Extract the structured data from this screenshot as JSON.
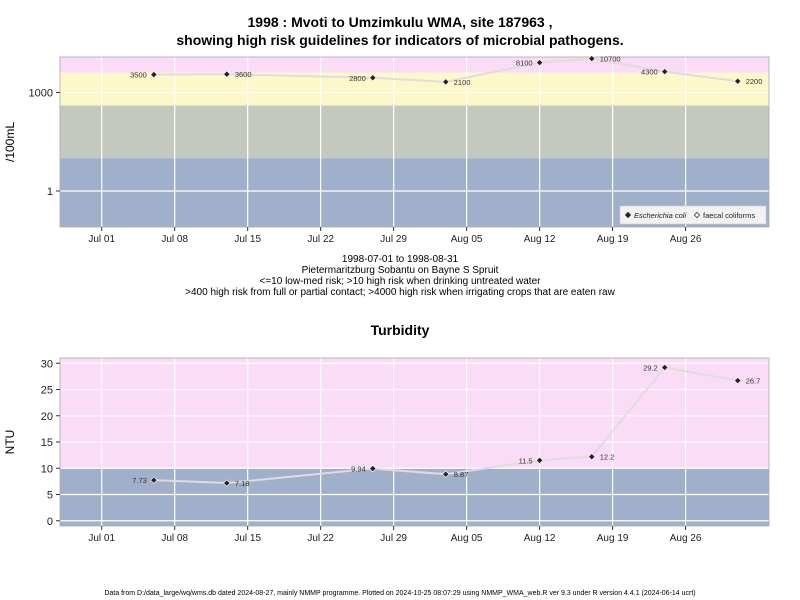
{
  "page": {
    "title_line1": "1998 : Mvoti to Umzimkulu WMA, site 187963 ,",
    "title_line2": "showing high risk guidelines for indicators of microbial pathogens.",
    "sub_lines": [
      "1998-07-01 to 1998-08-31",
      "Pietermaritzburg Sobantu on Bayne S Spruit",
      "<=10 low-med risk; >10 high risk when drinking untreated water",
      ">400 high risk from full or partial contact; >4000 high risk when irrigating crops that are eaten raw"
    ],
    "footer": "Data from D:/data_large/wq/wms.db dated 2024-08-27, mainly NMMP programme. Plotted on 2024-10-25 08:07:29 using NMMP_WMA_web.R ver 9.3 under R version 4.4.1 (2024-06-14 ucrt)"
  },
  "chart_data": [
    {
      "type": "line",
      "title": "",
      "ylabel": "/100mL",
      "yscale": "log",
      "ylim": [
        0.08,
        12000
      ],
      "xlim": [
        "1998-06-27",
        "1998-09-03"
      ],
      "x_ticks": [
        {
          "date": "1998-07-01",
          "label": "Jul 01"
        },
        {
          "date": "1998-07-08",
          "label": "Jul 08"
        },
        {
          "date": "1998-07-15",
          "label": "Jul 15"
        },
        {
          "date": "1998-07-22",
          "label": "Jul 22"
        },
        {
          "date": "1998-07-29",
          "label": "Jul 29"
        },
        {
          "date": "1998-08-05",
          "label": "Aug 05"
        },
        {
          "date": "1998-08-12",
          "label": "Aug 12"
        },
        {
          "date": "1998-08-19",
          "label": "Aug 19"
        },
        {
          "date": "1998-08-26",
          "label": "Aug 26"
        }
      ],
      "y_ticks": [
        {
          "value": 1,
          "label": "1"
        },
        {
          "value": 1000,
          "label": "1000"
        }
      ],
      "bands": [
        {
          "from": 0.08,
          "to": 10,
          "color": "#a1b0ca"
        },
        {
          "from": 10,
          "to": 400,
          "color": "#c4c9c0"
        },
        {
          "from": 400,
          "to": 4000,
          "color": "#fdf8c9"
        },
        {
          "from": 4000,
          "to": 12000,
          "color": "#fbdcf6"
        }
      ],
      "series": [
        {
          "name": "Escherichia coli",
          "marker": "filled-diamond",
          "points": [
            {
              "x": "1998-07-06",
              "y": 3500,
              "label": "3500",
              "label_side": "left"
            },
            {
              "x": "1998-07-13",
              "y": 3600,
              "label": "3600",
              "label_side": "right"
            },
            {
              "x": "1998-07-27",
              "y": 2800,
              "label": "2800",
              "label_side": "left"
            },
            {
              "x": "1998-08-03",
              "y": 2100,
              "label": "2100",
              "label_side": "right"
            },
            {
              "x": "1998-08-12",
              "y": 8100,
              "label": "8100",
              "label_side": "left"
            },
            {
              "x": "1998-08-17",
              "y": 10700,
              "label": "10700",
              "label_side": "right"
            },
            {
              "x": "1998-08-24",
              "y": 4300,
              "label": "4300",
              "label_side": "left"
            },
            {
              "x": "1998-08-31",
              "y": 2200,
              "label": "2200",
              "label_side": "right"
            }
          ]
        }
      ],
      "legend": {
        "placement": "bottom-right",
        "entries": [
          {
            "label": "Escherichia coli",
            "marker": "filled-diamond",
            "italic": true
          },
          {
            "label": "faecal coliforms",
            "marker": "open-diamond",
            "italic": false
          }
        ]
      },
      "colors": {
        "line": "#dddddd",
        "marker": "#222222",
        "grid": "#ffffff"
      }
    },
    {
      "type": "line",
      "title": "Turbidity",
      "ylabel": "NTU",
      "yscale": "linear",
      "ylim": [
        -1,
        31
      ],
      "xlim": [
        "1998-06-27",
        "1998-09-03"
      ],
      "x_ticks": [
        {
          "date": "1998-07-01",
          "label": "Jul 01"
        },
        {
          "date": "1998-07-08",
          "label": "Jul 08"
        },
        {
          "date": "1998-07-15",
          "label": "Jul 15"
        },
        {
          "date": "1998-07-22",
          "label": "Jul 22"
        },
        {
          "date": "1998-07-29",
          "label": "Jul 29"
        },
        {
          "date": "1998-08-05",
          "label": "Aug 05"
        },
        {
          "date": "1998-08-12",
          "label": "Aug 12"
        },
        {
          "date": "1998-08-19",
          "label": "Aug 19"
        },
        {
          "date": "1998-08-26",
          "label": "Aug 26"
        }
      ],
      "y_ticks": [
        {
          "value": 0,
          "label": "0"
        },
        {
          "value": 5,
          "label": "5"
        },
        {
          "value": 10,
          "label": "10"
        },
        {
          "value": 15,
          "label": "15"
        },
        {
          "value": 20,
          "label": "20"
        },
        {
          "value": 25,
          "label": "25"
        },
        {
          "value": 30,
          "label": "30"
        }
      ],
      "bands": [
        {
          "from": -1,
          "to": 10,
          "color": "#a1b0ca"
        },
        {
          "from": 10,
          "to": 31,
          "color": "#fbdcf6"
        }
      ],
      "series": [
        {
          "name": "",
          "marker": "filled-diamond",
          "points": [
            {
              "x": "1998-07-06",
              "y": 7.73,
              "label": "7.73",
              "label_side": "left"
            },
            {
              "x": "1998-07-13",
              "y": 7.18,
              "label": "7.18",
              "label_side": "right"
            },
            {
              "x": "1998-07-27",
              "y": 9.94,
              "label": "9.94",
              "label_side": "left"
            },
            {
              "x": "1998-08-03",
              "y": 8.87,
              "label": "8.87",
              "label_side": "right"
            },
            {
              "x": "1998-08-12",
              "y": 11.5,
              "label": "11.5",
              "label_side": "left"
            },
            {
              "x": "1998-08-17",
              "y": 12.2,
              "label": "12.2",
              "label_side": "right"
            },
            {
              "x": "1998-08-24",
              "y": 29.2,
              "label": "29.2",
              "label_side": "left"
            },
            {
              "x": "1998-08-31",
              "y": 26.7,
              "label": "26.7",
              "label_side": "right"
            }
          ]
        }
      ],
      "colors": {
        "line": "#dddddd",
        "marker": "#222222",
        "grid": "#ffffff"
      }
    }
  ]
}
